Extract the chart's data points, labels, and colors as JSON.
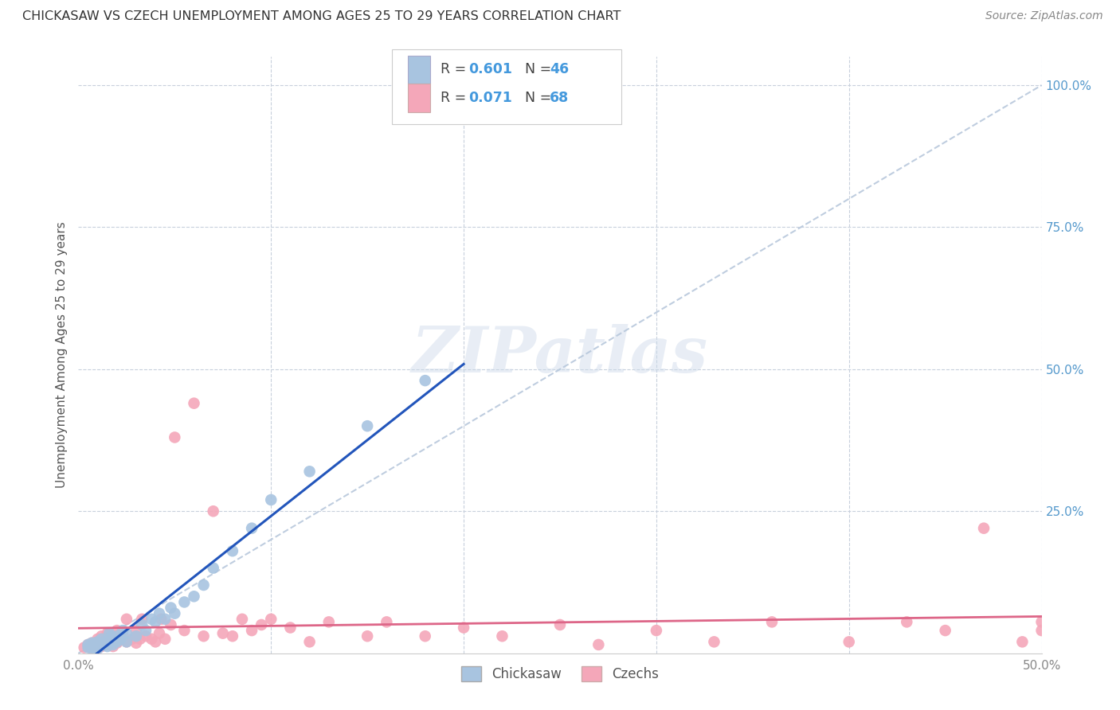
{
  "title": "CHICKASAW VS CZECH UNEMPLOYMENT AMONG AGES 25 TO 29 YEARS CORRELATION CHART",
  "source": "Source: ZipAtlas.com",
  "ylabel": "Unemployment Among Ages 25 to 29 years",
  "xlim": [
    0.0,
    0.5
  ],
  "ylim": [
    0.0,
    1.05
  ],
  "chickasaw_color": "#a8c4e0",
  "czech_color": "#f4a7b9",
  "chickasaw_line_color": "#2255bb",
  "czech_line_color": "#dd6688",
  "diagonal_color": "#b8c8dc",
  "legend_label_chickasaw": "Chickasaw",
  "legend_label_czech": "Czechs",
  "watermark": "ZIPatlas",
  "chickasaw_x": [
    0.005,
    0.005,
    0.007,
    0.007,
    0.007,
    0.008,
    0.008,
    0.009,
    0.01,
    0.01,
    0.012,
    0.012,
    0.013,
    0.014,
    0.015,
    0.015,
    0.016,
    0.017,
    0.017,
    0.018,
    0.018,
    0.02,
    0.02,
    0.022,
    0.023,
    0.025,
    0.025,
    0.03,
    0.033,
    0.035,
    0.038,
    0.04,
    0.042,
    0.045,
    0.048,
    0.05,
    0.055,
    0.06,
    0.065,
    0.07,
    0.08,
    0.09,
    0.1,
    0.12,
    0.15,
    0.18
  ],
  "chickasaw_y": [
    0.01,
    0.015,
    0.008,
    0.012,
    0.018,
    0.01,
    0.015,
    0.012,
    0.008,
    0.02,
    0.015,
    0.025,
    0.018,
    0.015,
    0.012,
    0.022,
    0.035,
    0.018,
    0.03,
    0.015,
    0.025,
    0.02,
    0.03,
    0.025,
    0.04,
    0.02,
    0.035,
    0.03,
    0.05,
    0.04,
    0.06,
    0.055,
    0.07,
    0.06,
    0.08,
    0.07,
    0.09,
    0.1,
    0.12,
    0.15,
    0.18,
    0.22,
    0.27,
    0.32,
    0.4,
    0.48
  ],
  "czech_x": [
    0.003,
    0.005,
    0.006,
    0.007,
    0.007,
    0.008,
    0.009,
    0.01,
    0.01,
    0.01,
    0.012,
    0.012,
    0.013,
    0.014,
    0.015,
    0.015,
    0.016,
    0.018,
    0.018,
    0.02,
    0.02,
    0.022,
    0.023,
    0.025,
    0.025,
    0.028,
    0.03,
    0.03,
    0.032,
    0.033,
    0.035,
    0.038,
    0.04,
    0.042,
    0.043,
    0.045,
    0.048,
    0.05,
    0.055,
    0.06,
    0.065,
    0.07,
    0.075,
    0.08,
    0.085,
    0.09,
    0.095,
    0.1,
    0.11,
    0.12,
    0.13,
    0.15,
    0.16,
    0.18,
    0.2,
    0.22,
    0.25,
    0.27,
    0.3,
    0.33,
    0.36,
    0.4,
    0.43,
    0.45,
    0.47,
    0.49,
    0.5,
    0.5
  ],
  "czech_y": [
    0.01,
    0.015,
    0.012,
    0.008,
    0.018,
    0.015,
    0.01,
    0.008,
    0.02,
    0.025,
    0.012,
    0.03,
    0.018,
    0.015,
    0.02,
    0.035,
    0.025,
    0.012,
    0.03,
    0.018,
    0.04,
    0.025,
    0.035,
    0.02,
    0.06,
    0.025,
    0.018,
    0.04,
    0.025,
    0.06,
    0.03,
    0.025,
    0.02,
    0.035,
    0.06,
    0.025,
    0.05,
    0.38,
    0.04,
    0.44,
    0.03,
    0.25,
    0.035,
    0.03,
    0.06,
    0.04,
    0.05,
    0.06,
    0.045,
    0.02,
    0.055,
    0.03,
    0.055,
    0.03,
    0.045,
    0.03,
    0.05,
    0.015,
    0.04,
    0.02,
    0.055,
    0.02,
    0.055,
    0.04,
    0.22,
    0.02,
    0.055,
    0.04
  ]
}
